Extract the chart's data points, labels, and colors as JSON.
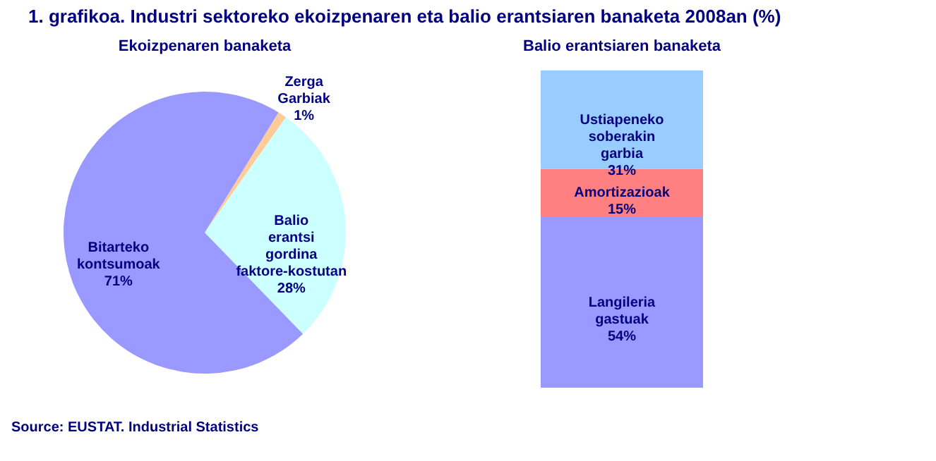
{
  "chart_data": [
    {
      "type": "pie",
      "title": "1. grafikoa. Industri sektoreko ekoizpenaren eta balio erantsiaren banaketa 2008an (%)",
      "subtitle": "Ekoizpenaren banaketa",
      "categories": [
        "Zerga Garbiak",
        "Balio erantsi gordina faktore-kostutan",
        "Bitarteko kontsumoak"
      ],
      "values": [
        1,
        28,
        71
      ],
      "value_labels": [
        "1%",
        "28%",
        "71%"
      ],
      "colors": [
        "#ffcc99",
        "#ccffff",
        "#9999ff"
      ],
      "annotations": [
        "Source: EUSTAT. Industrial Statistics"
      ]
    },
    {
      "type": "bar",
      "stacked": true,
      "title": "Balio erantsiaren banaketa",
      "categories": [
        null
      ],
      "ylim": [
        0,
        100
      ],
      "tick_labels": false,
      "series": [
        {
          "name": "Langileria gastuak",
          "color": "#9999ff",
          "values": [
            54
          ],
          "value_labels": [
            "54%"
          ]
        },
        {
          "name": "Amortizazioak",
          "color": "#ff8080",
          "values": [
            15
          ],
          "value_labels": [
            "15%"
          ]
        },
        {
          "name": "Ustiapeneko soberakin garbia",
          "color": "#99ccff",
          "values": [
            31
          ],
          "value_labels": [
            "31%"
          ]
        }
      ]
    }
  ]
}
